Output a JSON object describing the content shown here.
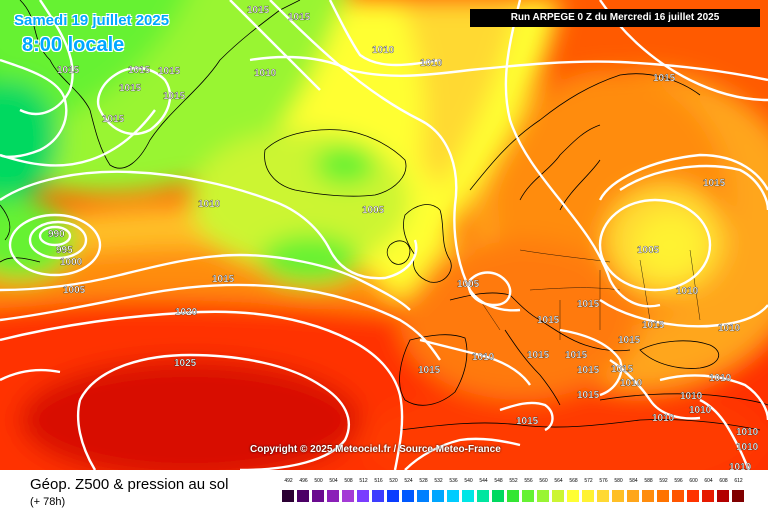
{
  "header": {
    "date_text": "Samedi 19 juillet 2025",
    "time_text": "8:00 locale",
    "run_text": "Run ARPEGE 0 Z du Mercredi 16 juillet 2025"
  },
  "map": {
    "copyright": "Copyright © 2025 Meteociel.fr / Source Meteo-France",
    "isobar_labels": [
      "1015",
      "1015",
      "1015",
      "1010",
      "1010",
      "1015",
      "1015",
      "1015",
      "1015",
      "1015",
      "1015",
      "1015",
      "1010",
      "1005",
      "990",
      "995",
      "1000",
      "1005",
      "1010",
      "1015",
      "1020",
      "1025",
      "1015",
      "1005",
      "1005",
      "1015",
      "1010",
      "1015",
      "1015",
      "1015",
      "1010",
      "1015",
      "1015",
      "1015",
      "1015",
      "1010",
      "1010",
      "1010",
      "1010",
      "1010",
      "1015",
      "1015",
      "1010",
      "1010",
      "1010",
      "1010"
    ]
  },
  "footer": {
    "title": "Géop. Z500 & pression au sol",
    "step": "(+ 78h)"
  },
  "legend": {
    "labels": [
      "492",
      "496",
      "500",
      "504",
      "508",
      "512",
      "516",
      "520",
      "524",
      "528",
      "532",
      "536",
      "540",
      "544",
      "548",
      "552",
      "556",
      "560",
      "564",
      "568",
      "572",
      "576",
      "580",
      "584",
      "588",
      "592",
      "596",
      "600",
      "604",
      "608",
      "612"
    ],
    "colors": [
      "#2b0033",
      "#4b0066",
      "#6a0a8f",
      "#8a1fb8",
      "#a43bd6",
      "#7a3cff",
      "#3d3dff",
      "#0a3cff",
      "#0059ff",
      "#0080ff",
      "#00a6ff",
      "#00ccff",
      "#00e6e6",
      "#00e6a0",
      "#00d960",
      "#33e633",
      "#66f233",
      "#99f533",
      "#ccf533",
      "#ffff33",
      "#fff233",
      "#ffd933",
      "#ffbf26",
      "#ffa61a",
      "#ff8c0d",
      "#ff7300",
      "#ff5500",
      "#ff3300",
      "#e61a00",
      "#b30000",
      "#800000"
    ]
  }
}
